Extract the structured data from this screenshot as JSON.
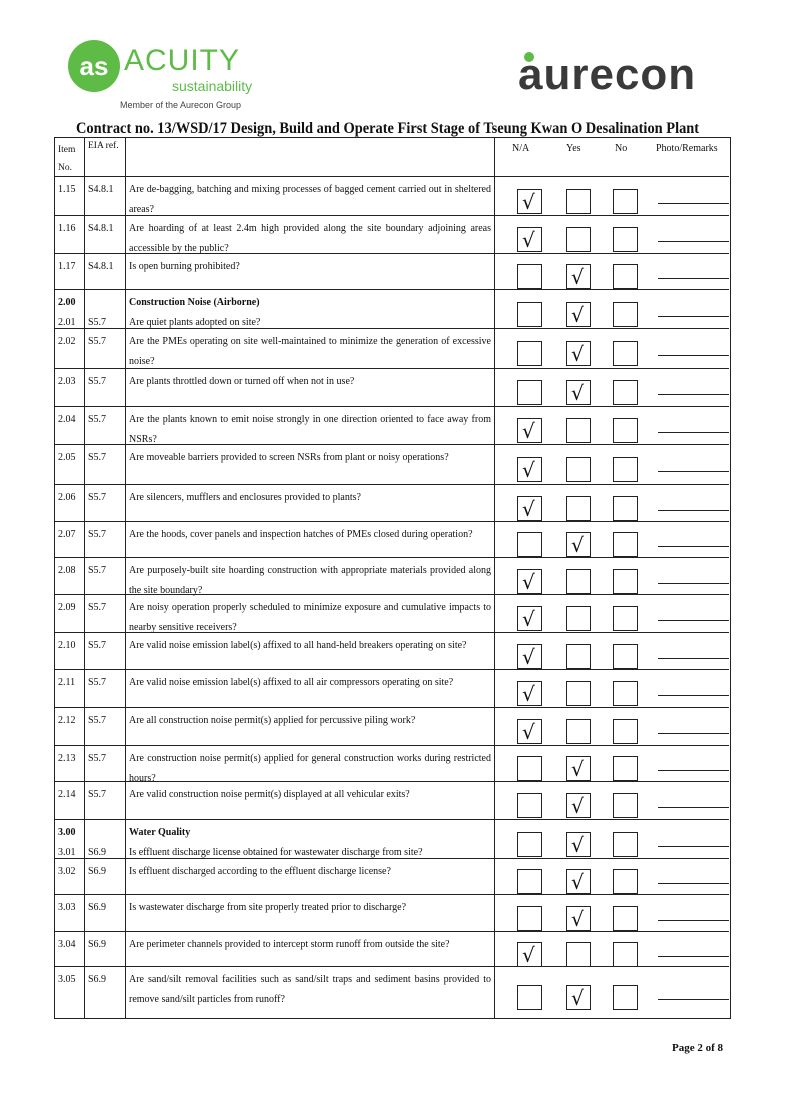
{
  "header": {
    "acuity_logo": {
      "mark": "as",
      "name": "ACUITY",
      "sub": "sustainability",
      "member": "Member of the Aurecon Group"
    },
    "aurecon_logo": "aurecon",
    "title": "Contract no.  13/WSD/17 Design, Build and Operate First Stage of Tseung Kwan O Desalination Plant"
  },
  "table": {
    "headers": {
      "item": "Item No.",
      "eia": "EIA ref.",
      "na": "N/A",
      "yes": "Yes",
      "no": "No",
      "remarks": "Photo/Remarks"
    },
    "rows": [
      {
        "item": "1.15",
        "eia": "S4.8.1",
        "question": "Are de-bagging, batching and mixing processes of bagged cement carried out in sheltered areas?",
        "answer": "N/A"
      },
      {
        "item": "1.16",
        "eia": "S4.8.1",
        "question": "Are hoarding of at least 2.4m high provided along the site boundary adjoining areas accessible by the public?",
        "answer": "N/A"
      },
      {
        "item": "1.17",
        "eia": "S4.8.1",
        "question": "Is open burning prohibited?",
        "answer": "Yes"
      },
      {
        "section_no": "2.00",
        "section": "Construction Noise (Airborne)",
        "item": "2.01",
        "eia": "S5.7",
        "question": "Are quiet plants adopted on site?",
        "answer": "Yes"
      },
      {
        "item": "2.02",
        "eia": "S5.7",
        "question": "Are the PMEs operating on site well-maintained to minimize the generation of excessive noise?",
        "answer": "Yes"
      },
      {
        "item": "2.03",
        "eia": "S5.7",
        "question": "Are plants throttled down or turned off when not in use?",
        "answer": "Yes"
      },
      {
        "item": "2.04",
        "eia": "S5.7",
        "question": "Are the plants known to emit noise strongly in one direction oriented to face away from NSRs?",
        "answer": "N/A"
      },
      {
        "item": "2.05",
        "eia": "S5.7",
        "question": "Are moveable barriers provided to screen NSRs from plant or noisy operations?",
        "answer": "N/A"
      },
      {
        "item": "2.06",
        "eia": "S5.7",
        "question": "Are silencers, mufflers and enclosures provided to plants?",
        "answer": "N/A"
      },
      {
        "item": "2.07",
        "eia": "S5.7",
        "question": "Are the hoods, cover panels and inspection hatches of PMEs closed during operation?",
        "answer": "Yes"
      },
      {
        "item": "2.08",
        "eia": "S5.7",
        "question": "Are purposely-built site hoarding construction with appropriate materials provided along the site boundary?",
        "answer": "N/A"
      },
      {
        "item": "2.09",
        "eia": "S5.7",
        "question": "Are noisy operation properly scheduled to minimize exposure and cumulative impacts to nearby sensitive receivers?",
        "answer": "N/A"
      },
      {
        "item": "2.10",
        "eia": "S5.7",
        "question": "Are valid noise emission label(s) affixed to all hand-held breakers operating on site?",
        "answer": "N/A"
      },
      {
        "item": "2.11",
        "eia": "S5.7",
        "question": "Are valid noise emission label(s) affixed to all air compressors operating on site?",
        "answer": "N/A"
      },
      {
        "item": "2.12",
        "eia": "S5.7",
        "question": "Are all construction noise permit(s) applied for percussive piling work?",
        "answer": "N/A"
      },
      {
        "item": "2.13",
        "eia": "S5.7",
        "question": "Are construction noise permit(s) applied for general construction works during restricted hours?",
        "answer": "Yes"
      },
      {
        "item": "2.14",
        "eia": "S5.7",
        "question": "Are valid construction noise permit(s) displayed at all vehicular exits?",
        "answer": "Yes"
      },
      {
        "section_no": "3.00",
        "section": "Water Quality",
        "item": "3.01",
        "eia": "S6.9",
        "question": "Is effluent discharge license obtained for wastewater discharge from site?",
        "answer": "Yes"
      },
      {
        "item": "3.02",
        "eia": "S6.9",
        "question": "Is effluent discharged according to the effluent discharge license?",
        "answer": "Yes"
      },
      {
        "item": "3.03",
        "eia": "S6.9",
        "question": "Is wastewater discharge from site properly treated prior to discharge?",
        "answer": "Yes"
      },
      {
        "item": "3.04",
        "eia": "S6.9",
        "question": "Are perimeter channels provided to intercept storm runoff from outside the site?",
        "answer": "N/A"
      },
      {
        "item": "3.05",
        "eia": "S6.9",
        "question": "Are sand/silt removal facilities such as sand/silt traps and sediment basins provided to remove sand/silt particles from runoff?",
        "answer": "Yes"
      }
    ]
  },
  "tick_symbol": "√",
  "footer": {
    "page": "Page 2 of 8"
  }
}
